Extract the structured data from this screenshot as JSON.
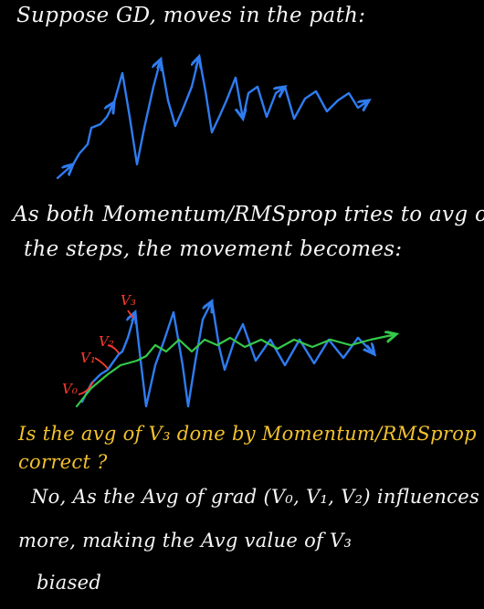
{
  "note": {
    "heading": "Suppose GD, moves in the path:",
    "para1_line1": "As both Momentum/RMSprop tries to avg out",
    "para1_line2": "the steps, the movement becomes:",
    "question_line1": "Is the avg of V₃ done by Momentum/RMSprop",
    "question_line2": "correct ?",
    "answer_line1": "No, As the Avg of grad (V₀, V₁, V₂) influences",
    "answer_line2": "more, making the Avg value of V₃",
    "answer_line3": "biased"
  },
  "labels": {
    "v0": "V₀",
    "v1": "V₁",
    "v2": "V₂",
    "v3": "V₃"
  },
  "colors": {
    "background": "#000000",
    "gd_path": "#2f7cf0",
    "avg_path": "#35c94a",
    "labels": "#ff3b2f",
    "question": "#f2c12e",
    "text": "#f5f5f5"
  }
}
